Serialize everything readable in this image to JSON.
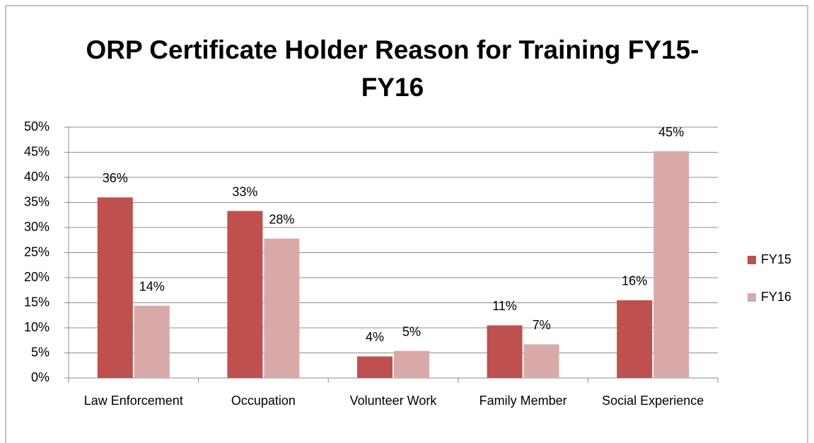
{
  "chart_data": {
    "type": "bar",
    "title": "ORP Certificate Holder Reason for Training FY15-FY16",
    "categories": [
      "Law Enforcement",
      "Occupation",
      "Volunteer Work",
      "Family Member",
      "Social Experience"
    ],
    "series": [
      {
        "name": "FY15",
        "color": "#c0504d",
        "values": [
          36,
          33.3,
          4.3,
          10.5,
          15.5
        ],
        "value_labels": [
          "36%",
          "33%",
          "4%",
          "11%",
          "16%"
        ]
      },
      {
        "name": "FY16",
        "color": "#d9a9a8",
        "values": [
          14.4,
          27.8,
          5.4,
          6.7,
          45.2
        ],
        "value_labels": [
          "14%",
          "28%",
          "5%",
          "7%",
          "45%"
        ]
      }
    ],
    "ylim": [
      0,
      50
    ],
    "yticks": [
      {
        "value": 0,
        "label": "0%"
      },
      {
        "value": 5,
        "label": "5%"
      },
      {
        "value": 10,
        "label": "10%"
      },
      {
        "value": 15,
        "label": "15%"
      },
      {
        "value": 20,
        "label": "20%"
      },
      {
        "value": 25,
        "label": "25%"
      },
      {
        "value": 30,
        "label": "30%"
      },
      {
        "value": 35,
        "label": "35%"
      },
      {
        "value": 40,
        "label": "40%"
      },
      {
        "value": 45,
        "label": "45%"
      },
      {
        "value": 50,
        "label": "50%"
      }
    ],
    "grid": true,
    "legend": "right"
  }
}
